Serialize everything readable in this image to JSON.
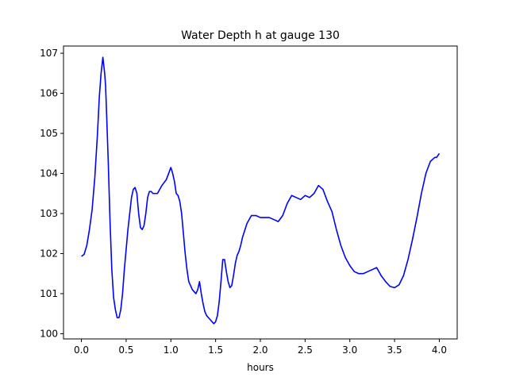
{
  "chart_data": {
    "type": "line",
    "title": "Water Depth h at gauge 130",
    "xlabel": "hours",
    "ylabel": "",
    "xlim": [
      -0.2,
      4.2
    ],
    "ylim": [
      99.87,
      107.18
    ],
    "xticks": [
      0.0,
      0.5,
      1.0,
      1.5,
      2.0,
      2.5,
      3.0,
      3.5,
      4.0
    ],
    "xtick_labels": [
      "0.0",
      "0.5",
      "1.0",
      "1.5",
      "2.0",
      "2.5",
      "3.0",
      "3.5",
      "4.0"
    ],
    "yticks": [
      100,
      101,
      102,
      103,
      104,
      105,
      106,
      107
    ],
    "ytick_labels": [
      "100",
      "101",
      "102",
      "103",
      "104",
      "105",
      "106",
      "107"
    ],
    "grid": false,
    "line_color": "#0000ff",
    "series": [
      {
        "x": [
          0.0,
          0.03,
          0.06,
          0.09,
          0.12,
          0.15,
          0.18,
          0.2,
          0.22,
          0.24,
          0.26,
          0.27,
          0.28,
          0.3,
          0.32,
          0.34,
          0.36,
          0.38,
          0.4,
          0.42,
          0.44,
          0.46,
          0.48,
          0.5,
          0.52,
          0.54,
          0.56,
          0.58,
          0.6,
          0.62,
          0.64,
          0.66,
          0.68,
          0.7,
          0.72,
          0.74,
          0.76,
          0.78,
          0.8,
          0.85,
          0.9,
          0.95,
          1.0,
          1.02,
          1.04,
          1.06,
          1.08,
          1.1,
          1.12,
          1.14,
          1.16,
          1.18,
          1.2,
          1.22,
          1.24,
          1.26,
          1.28,
          1.3,
          1.32,
          1.34,
          1.36,
          1.38,
          1.4,
          1.42,
          1.44,
          1.46,
          1.48,
          1.5,
          1.52,
          1.54,
          1.56,
          1.58,
          1.6,
          1.62,
          1.64,
          1.66,
          1.68,
          1.7,
          1.72,
          1.74,
          1.76,
          1.78,
          1.8,
          1.85,
          1.9,
          1.95,
          2.0,
          2.05,
          2.1,
          2.15,
          2.2,
          2.25,
          2.3,
          2.35,
          2.4,
          2.45,
          2.5,
          2.55,
          2.6,
          2.65,
          2.7,
          2.75,
          2.8,
          2.85,
          2.9,
          2.95,
          3.0,
          3.05,
          3.1,
          3.15,
          3.2,
          3.25,
          3.3,
          3.35,
          3.4,
          3.45,
          3.5,
          3.55,
          3.6,
          3.65,
          3.7,
          3.75,
          3.8,
          3.85,
          3.9,
          3.95,
          3.97,
          4.0
        ],
        "y": [
          101.93,
          101.98,
          102.2,
          102.6,
          103.1,
          103.9,
          105.0,
          105.9,
          106.5,
          106.9,
          106.5,
          106.2,
          105.6,
          104.3,
          102.8,
          101.6,
          100.9,
          100.6,
          100.4,
          100.4,
          100.6,
          101.0,
          101.6,
          102.1,
          102.6,
          103.0,
          103.4,
          103.6,
          103.65,
          103.5,
          103.0,
          102.65,
          102.6,
          102.7,
          103.0,
          103.4,
          103.55,
          103.55,
          103.5,
          103.5,
          103.7,
          103.85,
          104.15,
          104.0,
          103.8,
          103.5,
          103.45,
          103.3,
          103.0,
          102.5,
          102.0,
          101.6,
          101.3,
          101.2,
          101.1,
          101.05,
          101.0,
          101.1,
          101.3,
          101.0,
          100.75,
          100.55,
          100.45,
          100.4,
          100.35,
          100.3,
          100.25,
          100.3,
          100.45,
          100.8,
          101.3,
          101.85,
          101.85,
          101.55,
          101.3,
          101.15,
          101.2,
          101.45,
          101.75,
          101.95,
          102.05,
          102.2,
          102.4,
          102.75,
          102.95,
          102.95,
          102.9,
          102.9,
          102.9,
          102.85,
          102.8,
          102.95,
          103.25,
          103.45,
          103.4,
          103.35,
          103.45,
          103.4,
          103.5,
          103.7,
          103.6,
          103.3,
          103.05,
          102.6,
          102.2,
          101.9,
          101.7,
          101.55,
          101.5,
          101.5,
          101.55,
          101.6,
          101.65,
          101.45,
          101.3,
          101.18,
          101.15,
          101.22,
          101.45,
          101.85,
          102.35,
          102.9,
          103.5,
          104.0,
          104.3,
          104.4,
          104.4,
          104.5
        ]
      }
    ]
  }
}
